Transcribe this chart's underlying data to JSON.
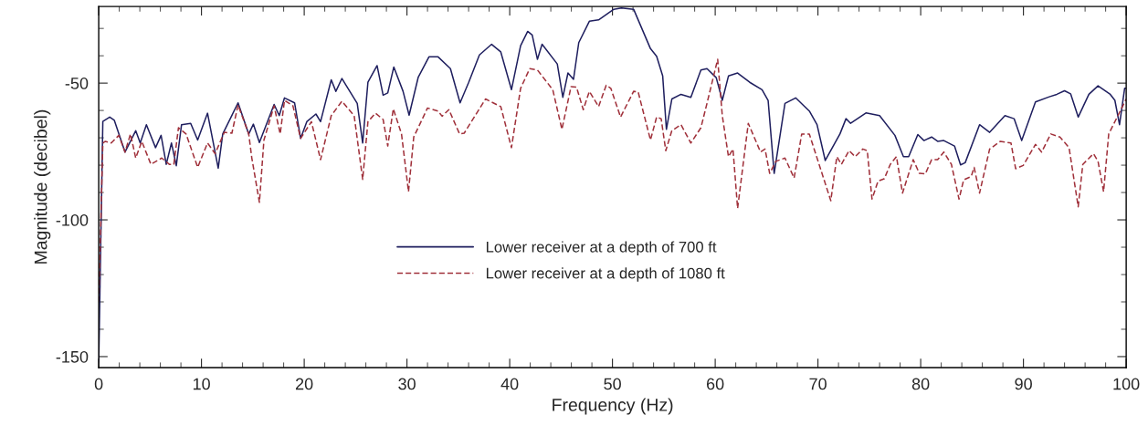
{
  "chart_data": {
    "type": "line",
    "xlabel": "Frequency (Hz)",
    "ylabel": "Magnitude (decibel)",
    "xlim": [
      0,
      100
    ],
    "ylim": [
      -154,
      -22
    ],
    "xticks": [
      0,
      10,
      20,
      30,
      40,
      50,
      60,
      70,
      80,
      90,
      100
    ],
    "yticks": [
      -150,
      -100,
      -50
    ],
    "grid": false,
    "legend": "bottom",
    "marker": "none",
    "series": [
      {
        "name": "Lower receiver at a depth of 700 ft",
        "color": "#1f1f5f",
        "line_style": "solid",
        "x": [
          0,
          0.4,
          1.07,
          1.52,
          2.56,
          3.6,
          4.04,
          4.64,
          5.53,
          6.07,
          6.57,
          7.08,
          7.55,
          8.06,
          8.95,
          9.63,
          10.59,
          11.63,
          12.07,
          13.56,
          14.6,
          15.05,
          15.64,
          17.07,
          17.57,
          18.08,
          19.06,
          19.65,
          20.25,
          21.14,
          21.59,
          22.63,
          23.08,
          23.67,
          25.16,
          25.69,
          26.2,
          27.09,
          27.68,
          28.13,
          28.72,
          29.62,
          30.21,
          31.1,
          32.14,
          33.03,
          34.23,
          35.17,
          36.01,
          37.05,
          38.24,
          39.13,
          40.17,
          41.06,
          41.75,
          42.19,
          42.7,
          43.15,
          44.63,
          45.17,
          45.67,
          46.21,
          46.72,
          47.75,
          48.65,
          50.13,
          50.87,
          52.06,
          53.7,
          54.3,
          54.89,
          55.25,
          55.78,
          56.67,
          57.63,
          58.61,
          59.2,
          60.1,
          60.69,
          61.29,
          62.18,
          63.36,
          64.56,
          65.15,
          65.74,
          66.79,
          67.83,
          69.16,
          69.91,
          70.71,
          72.14,
          72.73,
          73.18,
          74.67,
          76.0,
          77.49,
          78.32,
          78.83,
          79.72,
          80.32,
          81.06,
          81.65,
          82.25,
          83.29,
          83.88,
          84.33,
          85.73,
          86.71,
          88.2,
          89.09,
          89.83,
          91.17,
          92.51,
          93.25,
          94.0,
          94.59,
          95.33,
          96.37,
          97.26,
          98.45,
          98.9,
          99.35,
          99.85,
          100
        ],
        "values": [
          -152,
          -64,
          -62.4,
          -63.6,
          -75.2,
          -67.4,
          -71.9,
          -65.2,
          -73.6,
          -69.1,
          -79.7,
          -71.9,
          -80.2,
          -65.2,
          -64.7,
          -70.8,
          -61,
          -81.1,
          -68.6,
          -57.2,
          -68.6,
          -65,
          -71.7,
          -57.8,
          -61.9,
          -55.4,
          -57.2,
          -70.2,
          -64.1,
          -61.3,
          -64.1,
          -48.8,
          -53,
          -48.3,
          -57.4,
          -71.9,
          -49.7,
          -43.6,
          -54.4,
          -53.6,
          -44.1,
          -53,
          -61.7,
          -47.8,
          -40.4,
          -40.4,
          -44.7,
          -57.2,
          -49.7,
          -39.7,
          -35.8,
          -38.6,
          -52.4,
          -36.3,
          -31.1,
          -32.4,
          -41.3,
          -35.8,
          -43,
          -55.2,
          -46.3,
          -48.6,
          -35.2,
          -27.4,
          -26.9,
          -23,
          -22.5,
          -23,
          -37.4,
          -40.2,
          -47.4,
          -66.9,
          -55.8,
          -54.1,
          -55.2,
          -45.2,
          -44.7,
          -48,
          -56.3,
          -47.4,
          -46.3,
          -49.7,
          -52.4,
          -56.3,
          -83,
          -57.4,
          -55.4,
          -60.2,
          -65.2,
          -78.3,
          -68.6,
          -63,
          -64.7,
          -60.9,
          -61.9,
          -69.1,
          -76.9,
          -76.9,
          -68.8,
          -71,
          -69.7,
          -71.3,
          -71,
          -73,
          -79.9,
          -79.1,
          -65.2,
          -68,
          -61.9,
          -63,
          -71,
          -56.9,
          -55,
          -54.1,
          -52.8,
          -53.9,
          -62.4,
          -54.1,
          -51,
          -54.1,
          -56.3,
          -65.2,
          -51.9,
          -51.9
        ]
      },
      {
        "name": "Lower receiver at a depth of 1080 ft",
        "color": "#a0303a",
        "line_style": "dashed",
        "x": [
          0,
          0.4,
          0.62,
          1.22,
          1.96,
          2.56,
          3.09,
          3.6,
          4.19,
          5.08,
          6.13,
          6.87,
          7.31,
          7.76,
          8.5,
          9.63,
          10.59,
          11.33,
          12.22,
          12.96,
          13.56,
          14.6,
          14.9,
          15.64,
          16.08,
          17.07,
          17.66,
          18.08,
          18.9,
          19.65,
          20.7,
          21.59,
          22.63,
          23.67,
          24.86,
          25.69,
          26.2,
          26.94,
          27.68,
          28.13,
          28.67,
          29.47,
          30.15,
          30.66,
          32.0,
          33.03,
          33.42,
          34.08,
          35.12,
          35.57,
          37.65,
          39.13,
          40.17,
          41.06,
          41.95,
          42.7,
          44.19,
          45.08,
          45.97,
          46.5,
          47.16,
          47.75,
          48.65,
          49.39,
          49.84,
          50.79,
          52.06,
          52.5,
          53.7,
          54.3,
          54.74,
          55.19,
          55.78,
          56.67,
          57.63,
          58.61,
          59.2,
          60.24,
          60.69,
          61.29,
          61.73,
          62.18,
          63.22,
          64.41,
          64.85,
          65.3,
          65.9,
          66.79,
          67.68,
          68.42,
          69.16,
          71.25,
          71.84,
          72.28,
          73.03,
          73.62,
          74.37,
          74.8,
          75.26,
          75.85,
          76.45,
          77.04,
          77.64,
          78.23,
          79.27,
          79.87,
          80.45,
          81.06,
          81.65,
          82.25,
          82.99,
          83.73,
          84.18,
          84.92,
          85.2,
          85.73,
          86.71,
          87.75,
          88.79,
          89.24,
          89.98,
          91.17,
          91.77,
          92.66,
          93.55,
          94.44,
          95.33,
          95.78,
          96.82,
          97.26,
          97.8,
          98.3,
          98.9,
          99.79,
          100
        ],
        "values": [
          -130,
          -72,
          -71.3,
          -71.9,
          -69.1,
          -75.2,
          -68.6,
          -77.4,
          -71.3,
          -79.7,
          -77.4,
          -79.7,
          -79.7,
          -66.3,
          -68.6,
          -80.8,
          -71.9,
          -75.8,
          -68,
          -68.3,
          -58,
          -68.6,
          -77.4,
          -93.6,
          -70.8,
          -58.3,
          -68.6,
          -56.3,
          -58.3,
          -70.2,
          -64.1,
          -78,
          -61.9,
          -56.6,
          -61.9,
          -85.2,
          -64.1,
          -61,
          -63.3,
          -73,
          -59.4,
          -68.6,
          -89.7,
          -69.7,
          -59.1,
          -60.2,
          -62.1,
          -59.7,
          -68.6,
          -68.3,
          -55.8,
          -58.6,
          -73.6,
          -51.9,
          -44.7,
          -45.2,
          -52.4,
          -66.9,
          -51.3,
          -51.5,
          -59.7,
          -53,
          -58.6,
          -50.8,
          -51.9,
          -62.4,
          -53,
          -53.2,
          -70.8,
          -62.4,
          -63,
          -74.7,
          -67.4,
          -65.2,
          -71.9,
          -66.3,
          -57.4,
          -41.3,
          -61.9,
          -76.9,
          -74.1,
          -95.8,
          -64.7,
          -75.2,
          -74.1,
          -83,
          -78.6,
          -77.4,
          -84.7,
          -68.6,
          -68.6,
          -93,
          -76.9,
          -79.7,
          -74.7,
          -76.9,
          -74.1,
          -74.7,
          -92.4,
          -85.8,
          -85,
          -79.7,
          -76.9,
          -90.2,
          -78,
          -83,
          -83.2,
          -78,
          -78,
          -75.2,
          -79.7,
          -92.4,
          -85.4,
          -84.1,
          -80.8,
          -90.2,
          -74.1,
          -71.3,
          -71.9,
          -81.3,
          -80.1,
          -72.4,
          -75.2,
          -68.6,
          -69.7,
          -73.6,
          -95.2,
          -79.7,
          -75.8,
          -78.6,
          -89.7,
          -68.6,
          -64.1,
          -57.4,
          -55.8
        ]
      }
    ]
  }
}
